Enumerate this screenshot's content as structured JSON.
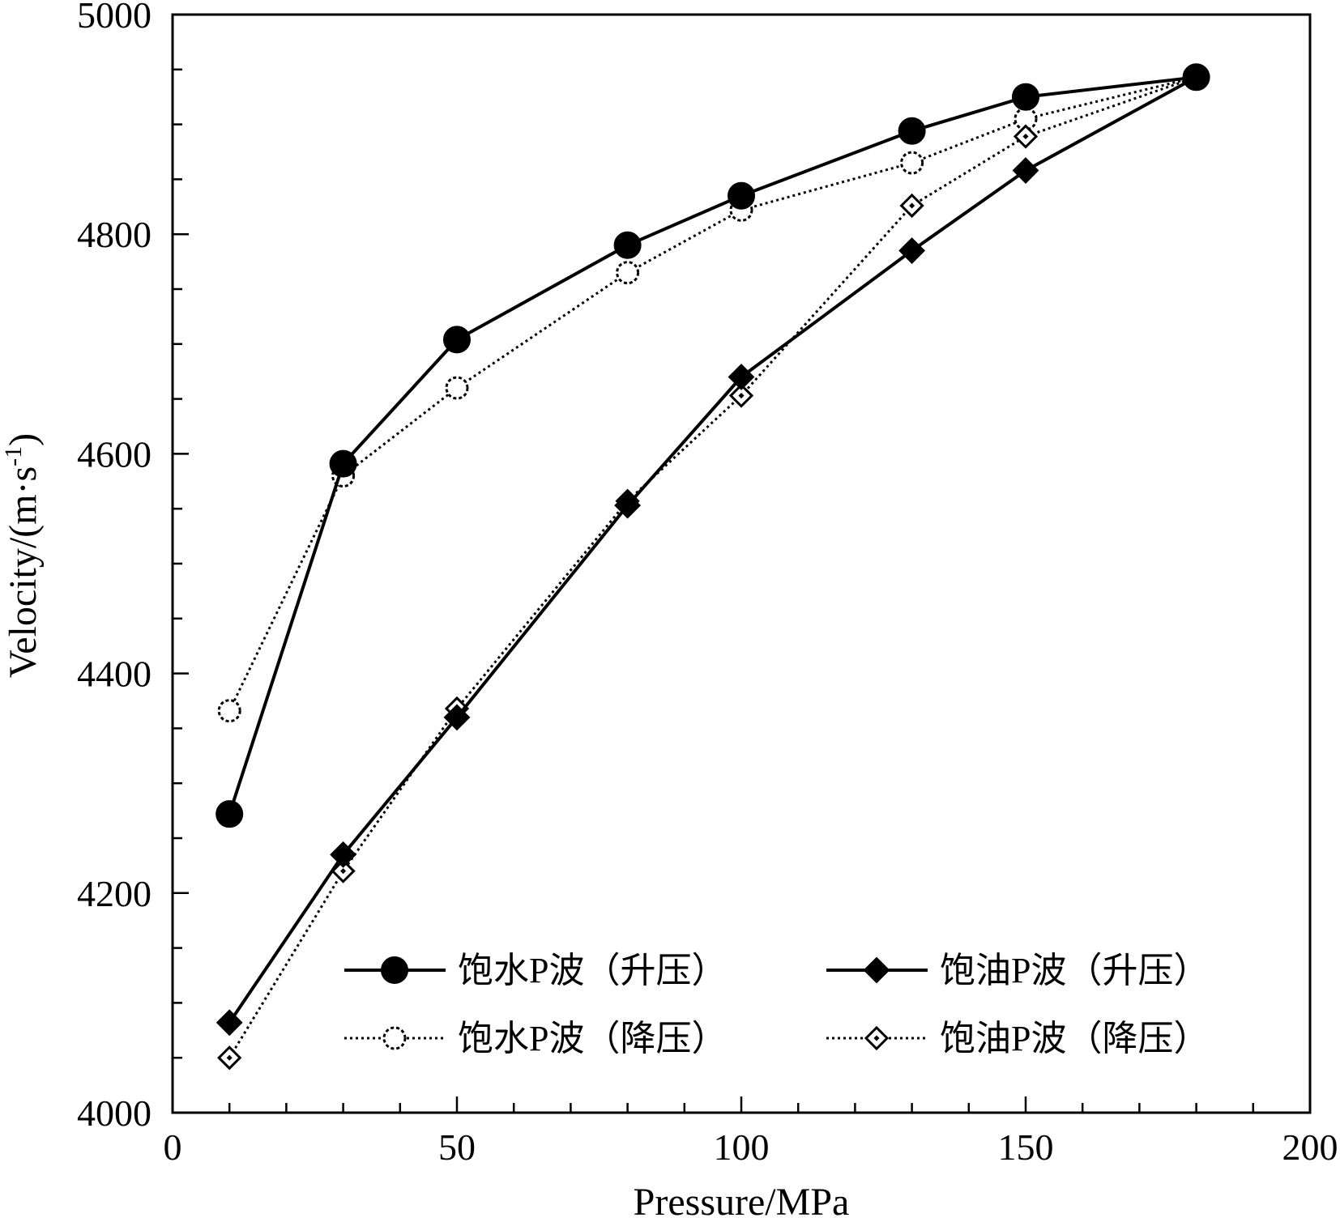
{
  "chart_data": {
    "type": "line",
    "xlabel": "Pressure/MPa",
    "ylabel": "Velocity/(m·s",
    "ylabel_sup": "-1",
    "ylabel_close": ")",
    "xlim": [
      0,
      200
    ],
    "ylim": [
      4000,
      5000
    ],
    "x_ticks": [
      0,
      50,
      100,
      150,
      200
    ],
    "x_tick_labels": [
      "0",
      "50",
      "100",
      "150",
      "200"
    ],
    "x_minor_step": 10,
    "y_ticks": [
      4000,
      4200,
      4400,
      4600,
      4800,
      5000
    ],
    "y_tick_labels": [
      "4000",
      "4200",
      "4400",
      "4600",
      "4800",
      "5000"
    ],
    "y_minor_step": 50,
    "grid": false,
    "legend_position": "bottom-right inside plot",
    "series": [
      {
        "name": "饱水P波（升压）",
        "marker": "circle-filled",
        "line": "solid",
        "x": [
          10,
          30,
          50,
          80,
          100,
          130,
          150,
          180
        ],
        "y": [
          4272,
          4591,
          4704,
          4790,
          4835,
          4894,
          4925,
          4943
        ]
      },
      {
        "name": "饱油P波（升压）",
        "marker": "diamond-filled",
        "line": "solid",
        "x": [
          10,
          30,
          50,
          80,
          100,
          130,
          150,
          180
        ],
        "y": [
          4082,
          4235,
          4360,
          4553,
          4670,
          4785,
          4858,
          4943
        ]
      },
      {
        "name": "饱水P波（降压）",
        "marker": "circle-open",
        "line": "dotted",
        "x": [
          10,
          30,
          50,
          80,
          100,
          130,
          150,
          180
        ],
        "y": [
          4366,
          4580,
          4660,
          4765,
          4822,
          4865,
          4905,
          4943
        ]
      },
      {
        "name": "饱油P波（降压）",
        "marker": "diamond-open",
        "line": "dotted",
        "x": [
          10,
          30,
          50,
          80,
          100,
          130,
          150,
          180
        ],
        "y": [
          4050,
          4220,
          4368,
          4557,
          4653,
          4826,
          4889,
          4943
        ]
      }
    ]
  }
}
